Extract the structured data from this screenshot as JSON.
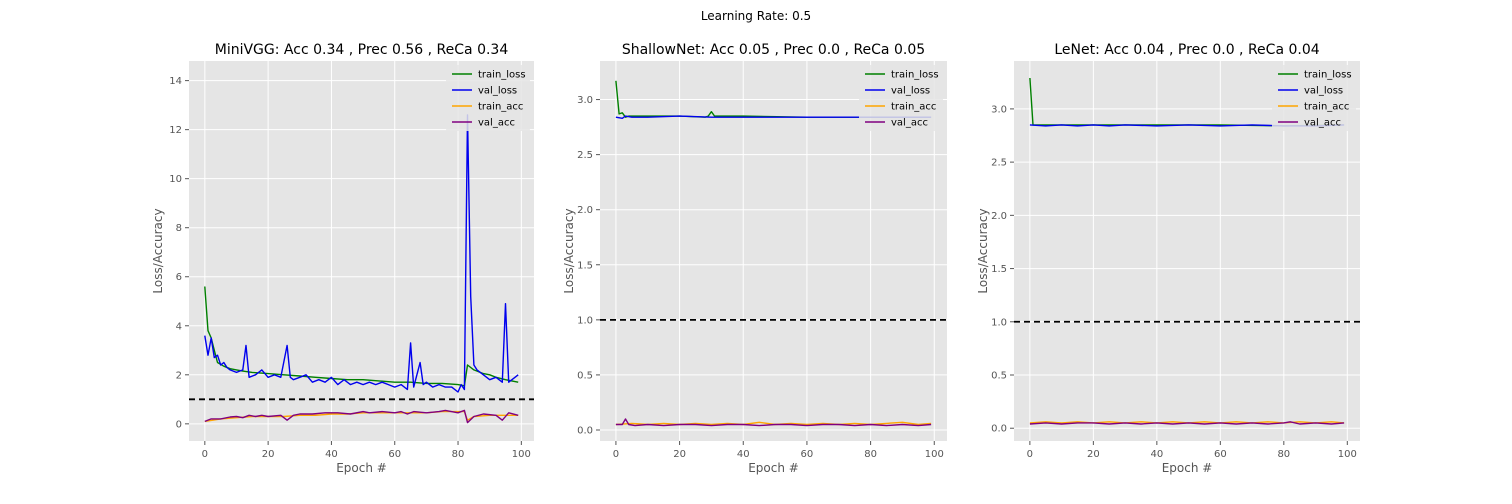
{
  "figure_title": "Learning Rate: 0.5",
  "chart_data": [
    {
      "type": "line",
      "title": "MiniVGG: Acc 0.34 , Prec 0.56 , ReCa 0.34",
      "xlabel": "Epoch #",
      "ylabel": "Loss/Accuracy",
      "xlim": [
        -5,
        104
      ],
      "ylim": [
        -0.7,
        14.8
      ],
      "xticks": [
        0,
        20,
        40,
        60,
        80,
        100
      ],
      "yticks": [
        0,
        2,
        4,
        6,
        8,
        10,
        12,
        14
      ],
      "ytick_labels": [
        "0",
        "2",
        "4",
        "6",
        "8",
        "10",
        "12",
        "14"
      ],
      "reference_line": {
        "y": 1.0,
        "style": "dashed",
        "color": "#000000"
      },
      "legend": "top-right",
      "grid": true,
      "series": [
        {
          "name": "train_loss",
          "color": "#008000",
          "x": [
            0,
            1,
            2,
            3,
            4,
            6,
            8,
            10,
            12,
            15,
            20,
            25,
            30,
            35,
            40,
            45,
            50,
            55,
            60,
            65,
            70,
            75,
            80,
            82,
            83,
            85,
            88,
            90,
            92,
            95,
            97,
            99
          ],
          "y": [
            5.6,
            3.8,
            3.5,
            3.0,
            2.5,
            2.35,
            2.25,
            2.2,
            2.15,
            2.1,
            2.05,
            2.0,
            1.95,
            1.9,
            1.85,
            1.8,
            1.8,
            1.75,
            1.7,
            1.7,
            1.65,
            1.65,
            1.6,
            1.55,
            2.4,
            2.2,
            2.05,
            2.0,
            1.9,
            1.8,
            1.75,
            1.7
          ]
        },
        {
          "name": "val_loss",
          "color": "#0000ee",
          "x": [
            0,
            1,
            2,
            3,
            4,
            5,
            6,
            7,
            8,
            10,
            12,
            13,
            14,
            16,
            18,
            20,
            22,
            24,
            26,
            27,
            28,
            30,
            32,
            34,
            36,
            38,
            40,
            42,
            44,
            46,
            48,
            50,
            52,
            54,
            56,
            58,
            60,
            62,
            64,
            65,
            66,
            68,
            69,
            70,
            72,
            74,
            76,
            78,
            80,
            81,
            82,
            83,
            84,
            85,
            86,
            88,
            90,
            92,
            94,
            95,
            96,
            98,
            99
          ],
          "y": [
            3.6,
            2.8,
            3.5,
            2.7,
            2.8,
            2.4,
            2.5,
            2.3,
            2.2,
            2.1,
            2.2,
            3.2,
            1.9,
            2.0,
            2.2,
            1.9,
            2.0,
            1.9,
            3.2,
            1.9,
            1.8,
            1.9,
            2.0,
            1.7,
            1.8,
            1.7,
            1.9,
            1.6,
            1.8,
            1.6,
            1.7,
            1.6,
            1.7,
            1.6,
            1.7,
            1.6,
            1.5,
            1.6,
            1.4,
            3.3,
            1.5,
            2.5,
            1.6,
            1.7,
            1.5,
            1.6,
            1.5,
            1.5,
            1.3,
            1.6,
            1.4,
            12.6,
            5.2,
            2.4,
            2.2,
            2.0,
            1.8,
            1.9,
            1.7,
            4.9,
            1.7,
            1.9,
            2.0
          ]
        },
        {
          "name": "train_acc",
          "color": "#ffa500",
          "x": [
            0,
            5,
            10,
            15,
            20,
            25,
            30,
            35,
            40,
            45,
            50,
            55,
            60,
            65,
            70,
            75,
            80,
            82,
            83,
            85,
            90,
            95,
            99
          ],
          "y": [
            0.1,
            0.2,
            0.25,
            0.3,
            0.3,
            0.3,
            0.35,
            0.35,
            0.4,
            0.4,
            0.45,
            0.45,
            0.45,
            0.45,
            0.45,
            0.5,
            0.5,
            0.5,
            0.15,
            0.3,
            0.35,
            0.35,
            0.35
          ]
        },
        {
          "name": "val_acc",
          "color": "#800080",
          "x": [
            0,
            2,
            5,
            8,
            10,
            12,
            14,
            16,
            18,
            20,
            24,
            26,
            28,
            30,
            34,
            38,
            42,
            46,
            50,
            52,
            56,
            60,
            62,
            64,
            66,
            70,
            74,
            76,
            80,
            82,
            83,
            85,
            88,
            92,
            94,
            96,
            99
          ],
          "y": [
            0.1,
            0.2,
            0.2,
            0.28,
            0.3,
            0.25,
            0.35,
            0.3,
            0.35,
            0.3,
            0.35,
            0.15,
            0.35,
            0.4,
            0.4,
            0.45,
            0.45,
            0.4,
            0.5,
            0.45,
            0.5,
            0.45,
            0.5,
            0.4,
            0.5,
            0.45,
            0.5,
            0.55,
            0.45,
            0.55,
            0.05,
            0.3,
            0.4,
            0.35,
            0.15,
            0.45,
            0.35
          ]
        }
      ]
    },
    {
      "type": "line",
      "title": "ShallowNet: Acc 0.05 , Prec 0.0 , ReCa 0.05",
      "xlabel": "Epoch #",
      "ylabel": "Loss/Accuracy",
      "xlim": [
        -5,
        104
      ],
      "ylim": [
        -0.1,
        3.35
      ],
      "xticks": [
        0,
        20,
        40,
        60,
        80,
        100
      ],
      "yticks": [
        0.0,
        0.5,
        1.0,
        1.5,
        2.0,
        2.5,
        3.0
      ],
      "ytick_labels": [
        "0.0",
        "0.5",
        "1.0",
        "1.5",
        "2.0",
        "2.5",
        "3.0"
      ],
      "reference_line": {
        "y": 1.0,
        "style": "dashed",
        "color": "#000000"
      },
      "legend": "top-right",
      "grid": true,
      "series": [
        {
          "name": "train_loss",
          "color": "#008000",
          "x": [
            0,
            1,
            2,
            3,
            4,
            10,
            20,
            28,
            29,
            30,
            31,
            40,
            60,
            80,
            99
          ],
          "y": [
            3.17,
            2.87,
            2.88,
            2.84,
            2.85,
            2.85,
            2.85,
            2.84,
            2.85,
            2.89,
            2.85,
            2.85,
            2.84,
            2.84,
            2.84
          ]
        },
        {
          "name": "val_loss",
          "color": "#0000ee",
          "x": [
            0,
            2,
            3,
            5,
            10,
            20,
            30,
            40,
            50,
            60,
            70,
            80,
            90,
            99
          ],
          "y": [
            2.84,
            2.83,
            2.85,
            2.84,
            2.84,
            2.85,
            2.84,
            2.84,
            2.84,
            2.84,
            2.84,
            2.84,
            2.84,
            2.84
          ]
        },
        {
          "name": "train_acc",
          "color": "#ffa500",
          "x": [
            0,
            5,
            10,
            15,
            20,
            25,
            30,
            35,
            40,
            45,
            50,
            55,
            60,
            65,
            70,
            75,
            80,
            85,
            90,
            95,
            99
          ],
          "y": [
            0.05,
            0.06,
            0.05,
            0.06,
            0.05,
            0.06,
            0.05,
            0.06,
            0.05,
            0.07,
            0.05,
            0.06,
            0.05,
            0.06,
            0.05,
            0.06,
            0.05,
            0.06,
            0.07,
            0.05,
            0.06
          ]
        },
        {
          "name": "val_acc",
          "color": "#800080",
          "x": [
            0,
            2,
            3,
            4,
            6,
            10,
            15,
            20,
            25,
            30,
            35,
            40,
            45,
            50,
            55,
            60,
            65,
            70,
            75,
            80,
            85,
            90,
            95,
            99
          ],
          "y": [
            0.05,
            0.05,
            0.1,
            0.05,
            0.04,
            0.05,
            0.04,
            0.05,
            0.05,
            0.04,
            0.05,
            0.05,
            0.04,
            0.05,
            0.05,
            0.04,
            0.05,
            0.05,
            0.04,
            0.05,
            0.04,
            0.05,
            0.04,
            0.05
          ]
        }
      ]
    },
    {
      "type": "line",
      "title": "LeNet: Acc 0.04 , Prec 0.0 , ReCa 0.04",
      "xlabel": "Epoch #",
      "ylabel": "Loss/Accuracy",
      "xlim": [
        -5,
        104
      ],
      "ylim": [
        -0.12,
        3.45
      ],
      "xticks": [
        0,
        20,
        40,
        60,
        80,
        100
      ],
      "yticks": [
        0.0,
        0.5,
        1.0,
        1.5,
        2.0,
        2.5,
        3.0
      ],
      "ytick_labels": [
        "0.0",
        "0.5",
        "1.0",
        "1.5",
        "2.0",
        "2.5",
        "3.0"
      ],
      "reference_line": {
        "y": 1.0,
        "style": "dashed",
        "color": "#000000"
      },
      "legend": "top-right",
      "grid": true,
      "series": [
        {
          "name": "train_loss",
          "color": "#008000",
          "x": [
            0,
            1,
            2,
            10,
            20,
            40,
            60,
            80,
            99
          ],
          "y": [
            3.29,
            2.85,
            2.85,
            2.85,
            2.85,
            2.85,
            2.85,
            2.84,
            2.85
          ]
        },
        {
          "name": "val_loss",
          "color": "#0000ee",
          "x": [
            0,
            5,
            10,
            15,
            20,
            25,
            30,
            40,
            50,
            60,
            70,
            80,
            90,
            99
          ],
          "y": [
            2.85,
            2.84,
            2.85,
            2.84,
            2.85,
            2.84,
            2.85,
            2.84,
            2.85,
            2.84,
            2.85,
            2.84,
            2.84,
            2.85
          ]
        },
        {
          "name": "train_acc",
          "color": "#ffa500",
          "x": [
            0,
            5,
            10,
            15,
            20,
            25,
            30,
            35,
            40,
            45,
            50,
            55,
            60,
            65,
            70,
            75,
            80,
            85,
            90,
            95,
            99
          ],
          "y": [
            0.05,
            0.06,
            0.05,
            0.06,
            0.05,
            0.06,
            0.05,
            0.06,
            0.05,
            0.06,
            0.05,
            0.06,
            0.05,
            0.06,
            0.05,
            0.06,
            0.05,
            0.06,
            0.05,
            0.06,
            0.05
          ]
        },
        {
          "name": "val_acc",
          "color": "#800080",
          "x": [
            0,
            5,
            10,
            15,
            20,
            25,
            30,
            35,
            40,
            45,
            50,
            55,
            60,
            65,
            70,
            75,
            80,
            82,
            85,
            90,
            95,
            99
          ],
          "y": [
            0.04,
            0.05,
            0.04,
            0.05,
            0.05,
            0.04,
            0.05,
            0.04,
            0.05,
            0.04,
            0.05,
            0.04,
            0.05,
            0.04,
            0.05,
            0.04,
            0.05,
            0.06,
            0.04,
            0.05,
            0.04,
            0.05
          ]
        }
      ]
    }
  ]
}
